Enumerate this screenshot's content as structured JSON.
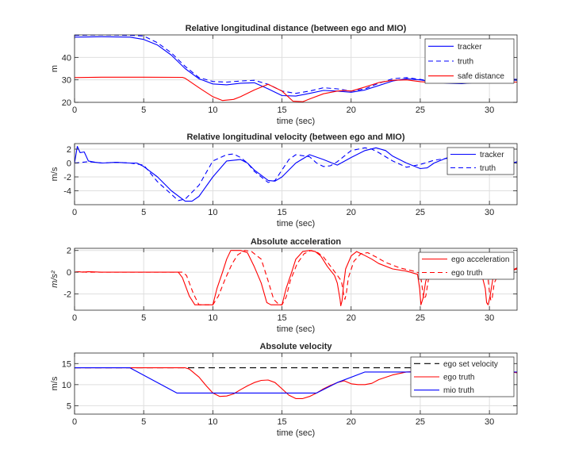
{
  "chart_data": [
    {
      "type": "line",
      "title": "Relative longitudinal distance (between ego and MIO)",
      "xlabel": "time (sec)",
      "ylabel": "m",
      "xlim": [
        0,
        32
      ],
      "ylim": [
        20,
        50
      ],
      "xticks": [
        0,
        5,
        10,
        15,
        20,
        25,
        30
      ],
      "yticks": [
        20,
        30,
        40
      ],
      "grid": true,
      "legend_position": "top-right",
      "series": [
        {
          "name": "tracker",
          "color": "#0000ff",
          "dash": "solid",
          "x": [
            0,
            2,
            4,
            5,
            6,
            7,
            8,
            9,
            10,
            11,
            12,
            13,
            14,
            15,
            16,
            17,
            18,
            19,
            20,
            21,
            22,
            23,
            24,
            25,
            26,
            27,
            28,
            29,
            30,
            31,
            32
          ],
          "y": [
            49,
            49.2,
            49,
            48,
            45.5,
            41,
            35,
            30.5,
            28.2,
            27.8,
            28.5,
            28.7,
            26,
            23,
            22.8,
            24,
            25.3,
            25,
            24.5,
            25.5,
            27.5,
            29.5,
            30.5,
            30,
            29,
            28.5,
            28.3,
            28.8,
            29.5,
            30,
            29.8
          ]
        },
        {
          "name": "truth",
          "color": "#0000ff",
          "dash": "6,4",
          "x": [
            0,
            2,
            4,
            5,
            6,
            7,
            8,
            9,
            10,
            11,
            12,
            13,
            14,
            15,
            16,
            17,
            18,
            19,
            20,
            21,
            22,
            23,
            24,
            25,
            26,
            27,
            28,
            29,
            30,
            31,
            32
          ],
          "y": [
            49.8,
            50,
            49.8,
            49.5,
            46.5,
            42,
            36,
            31,
            29.3,
            29,
            29.5,
            29.8,
            28,
            25,
            24,
            25,
            26.5,
            26,
            25,
            26,
            28.5,
            30.5,
            31,
            30.2,
            29.3,
            28.8,
            28.8,
            29.2,
            29.8,
            30.5,
            30.2
          ]
        },
        {
          "name": "safe distance",
          "color": "#ff0000",
          "dash": "solid",
          "x": [
            0,
            2,
            5,
            7.8,
            8,
            9,
            10,
            10.7,
            11.5,
            12,
            13,
            14,
            15,
            15.8,
            16.5,
            17,
            18,
            19,
            19.5,
            20,
            21,
            22,
            23,
            24,
            25,
            26,
            27,
            28,
            29,
            30,
            31,
            32
          ],
          "y": [
            31,
            31.2,
            31.2,
            31.1,
            30.7,
            26.5,
            22.5,
            20.8,
            21.3,
            22.5,
            25.5,
            28,
            25,
            20.5,
            20.3,
            21.5,
            23.8,
            25,
            25.3,
            25,
            26.8,
            28.8,
            29.8,
            30,
            29.2,
            28.8,
            29,
            29.3,
            29.8,
            29.5,
            29.2,
            29
          ]
        }
      ]
    },
    {
      "type": "line",
      "title": "Relative longitudinal velocity (between ego and MIO)",
      "xlabel": "time (sec)",
      "ylabel": "m/s",
      "xlim": [
        0,
        32
      ],
      "ylim": [
        -6,
        2.8
      ],
      "xticks": [
        0,
        5,
        10,
        15,
        20,
        25,
        30
      ],
      "yticks": [
        -4,
        -2,
        0,
        2
      ],
      "grid": true,
      "legend_position": "top-right",
      "series": [
        {
          "name": "tracker",
          "color": "#0000ff",
          "dash": "solid",
          "x": [
            0,
            0.2,
            0.4,
            0.7,
            1,
            1.5,
            2,
            3,
            4,
            4.5,
            5,
            6,
            7,
            8,
            8.5,
            9,
            10,
            11,
            12,
            12.5,
            13,
            14,
            14.5,
            15,
            16,
            17,
            18,
            19,
            20,
            21,
            21.8,
            22.5,
            23,
            24,
            25,
            25.5,
            26,
            27,
            28,
            29,
            30,
            31,
            32
          ],
          "y": [
            0,
            2.4,
            1.5,
            1.6,
            0.3,
            0.1,
            0,
            0.1,
            0,
            0,
            -0.5,
            -2,
            -4,
            -5.5,
            -5.5,
            -4.8,
            -2,
            0.3,
            0.5,
            0,
            -1,
            -2.5,
            -2.6,
            -2,
            0,
            1.2,
            0.5,
            -0.3,
            0.8,
            1.8,
            2.2,
            1.8,
            1,
            0,
            -0.8,
            -0.7,
            0,
            0.8,
            1.2,
            1,
            0,
            -0.4,
            0.2
          ]
        },
        {
          "name": "truth",
          "color": "#0000ff",
          "dash": "6,4",
          "x": [
            0,
            1,
            2,
            3,
            4,
            5,
            6,
            7,
            7.5,
            8,
            9,
            10,
            11,
            11.5,
            12,
            12.5,
            13,
            14,
            14.5,
            15,
            15.5,
            16,
            17,
            17.5,
            18,
            18.5,
            19,
            20,
            21,
            21.5,
            22,
            23,
            24,
            25,
            26,
            27,
            28,
            29,
            30,
            31,
            32
          ],
          "y": [
            0,
            0.2,
            0,
            0.1,
            0,
            -0.3,
            -2.7,
            -4.5,
            -5.4,
            -5.2,
            -3.2,
            0.3,
            1.2,
            1.3,
            0.8,
            0,
            -1.2,
            -2.8,
            -2.5,
            -1,
            0.5,
            1.2,
            0.9,
            0,
            -0.5,
            -0.4,
            0.2,
            1.8,
            2.2,
            2,
            1.5,
            0.3,
            -0.6,
            -0.2,
            0.4,
            0.7,
            0.5,
            0.3,
            0.2,
            0.1,
            0
          ]
        }
      ]
    },
    {
      "type": "line",
      "title": "Absolute acceleration",
      "xlabel": "time (sec)",
      "ylabel": "m/s²",
      "xlim": [
        0,
        32
      ],
      "ylim": [
        -3.5,
        2.2
      ],
      "xticks": [
        0,
        5,
        10,
        15,
        20,
        25,
        30
      ],
      "yticks": [
        -2,
        0,
        2
      ],
      "grid": true,
      "legend_position": "top-right",
      "series": [
        {
          "name": "ego acceleration",
          "color": "#ff0000",
          "dash": "solid",
          "x": [
            0,
            0.3,
            0.6,
            1,
            2,
            7.5,
            7.8,
            8.3,
            8.7,
            9,
            10,
            10.3,
            10.7,
            11,
            11.3,
            11.7,
            12,
            12.5,
            13,
            13.5,
            13.9,
            14.2,
            14.6,
            15,
            15.3,
            15.7,
            16,
            16.5,
            17,
            17.4,
            17.8,
            18.3,
            18.8,
            19,
            19.2,
            19.25,
            19.35,
            19.45,
            19.6,
            20,
            20.4,
            20.9,
            21.5,
            22,
            23,
            24,
            24.8,
            24.95,
            25.05,
            25.2,
            25.4,
            25.7,
            26,
            26.6,
            27,
            28,
            28.8,
            29.5,
            29.7,
            29.8,
            29.9,
            30.05,
            30.25,
            30.5,
            31,
            31.5,
            32
          ],
          "y": [
            0,
            0.05,
            0,
            0.05,
            0,
            0,
            -0.5,
            -2.2,
            -3,
            -3,
            -3,
            -1.5,
            0,
            1.2,
            2,
            2,
            2,
            1.8,
            0.5,
            -1,
            -2.8,
            -3,
            -3,
            -3,
            -1.5,
            0,
            1.2,
            1.9,
            2,
            1.9,
            1.5,
            0.5,
            -0.3,
            -1,
            -2.5,
            -3.1,
            -2.6,
            -1.2,
            0.3,
            1.5,
            1.9,
            1.6,
            1.2,
            0.8,
            0.3,
            0.1,
            -0.2,
            -1.5,
            -3,
            -2.4,
            -0.8,
            0,
            0.2,
            0.1,
            0,
            0,
            -0.2,
            -0.5,
            -1.5,
            -2.8,
            -3,
            -2.2,
            -0.6,
            -0.3,
            -0.2,
            0.1,
            0.4
          ]
        },
        {
          "name": "ego truth",
          "color": "#ff0000",
          "dash": "6,4",
          "x": [
            0,
            0.4,
            0.8,
            2,
            7.8,
            8.1,
            8.6,
            9,
            10,
            10.4,
            10.9,
            11.4,
            11.8,
            12.3,
            12.8,
            13.5,
            14,
            14.4,
            14.8,
            15,
            15.3,
            15.6,
            16.1,
            16.6,
            17.1,
            17.6,
            18,
            18.6,
            19.3,
            19.45,
            19.55,
            19.65,
            19.8,
            20.2,
            20.7,
            21.2,
            21.8,
            22.5,
            23.5,
            24.5,
            25,
            25.1,
            25.25,
            25.4,
            25.6,
            25.9,
            26.2,
            26.8,
            27.5,
            28.5,
            29.5,
            29.9,
            30,
            30.1,
            30.2,
            30.35,
            30.6,
            31,
            31.5,
            32
          ],
          "y": [
            0,
            0.05,
            0,
            0,
            0,
            -0.3,
            -2,
            -3,
            -3,
            -2.2,
            -0.6,
            0.8,
            1.6,
            2,
            1.9,
            1.2,
            -0.8,
            -2.5,
            -3,
            -3,
            -2.3,
            -0.8,
            0.8,
            1.7,
            2,
            1.8,
            1.4,
            0.4,
            -0.8,
            -2,
            -2.5,
            -2,
            -0.5,
            1,
            1.7,
            1.8,
            1.4,
            0.9,
            0.4,
            0.1,
            -0.1,
            -1,
            -2.5,
            -2.2,
            -0.6,
            0.1,
            0.3,
            0.1,
            0,
            0,
            -0.2,
            -0.6,
            -1.8,
            -2.6,
            -2.4,
            -1,
            -0.3,
            -0.1,
            0.1,
            0.3
          ]
        }
      ]
    },
    {
      "type": "line",
      "title": "Absolute velocity",
      "xlabel": "time (sec)",
      "ylabel": "m/s",
      "xlim": [
        0,
        32
      ],
      "ylim": [
        3,
        17.5
      ],
      "xticks": [
        0,
        5,
        10,
        15,
        20,
        25,
        30
      ],
      "yticks": [
        5,
        10,
        15
      ],
      "grid": true,
      "legend_position": "top-right",
      "series": [
        {
          "name": "ego set velocity",
          "color": "#000000",
          "dash": "8,5",
          "x": [
            0,
            32
          ],
          "y": [
            14,
            14
          ]
        },
        {
          "name": "ego truth",
          "color": "#ff0000",
          "dash": "solid",
          "x": [
            0,
            4,
            8,
            8.3,
            9,
            9.5,
            10,
            10.5,
            11,
            11.5,
            12,
            12.5,
            13,
            13.5,
            14,
            14.5,
            15,
            15.5,
            16,
            16.5,
            17,
            17.5,
            18,
            18.5,
            19,
            19.5,
            20,
            20.5,
            21,
            21.5,
            22,
            23,
            24,
            25,
            26,
            27,
            28,
            29,
            30,
            31,
            32
          ],
          "y": [
            14,
            14,
            14,
            13.7,
            11.8,
            9.8,
            8,
            7.2,
            7.3,
            7.8,
            8.8,
            9.7,
            10.5,
            11,
            11.1,
            10.5,
            9,
            7.5,
            6.7,
            6.7,
            7.2,
            8,
            9,
            9.8,
            10.5,
            10.9,
            10.2,
            10,
            10,
            10.3,
            11.2,
            12.3,
            13,
            13.2,
            13.4,
            13.5,
            13.5,
            13.5,
            13.6,
            13.3,
            12.8
          ]
        },
        {
          "name": "mio truth",
          "color": "#0000ff",
          "dash": "solid",
          "x": [
            0,
            4,
            7.4,
            17.5,
            19,
            21,
            32
          ],
          "y": [
            14,
            14,
            8,
            8,
            10.5,
            13,
            13
          ]
        }
      ]
    }
  ]
}
